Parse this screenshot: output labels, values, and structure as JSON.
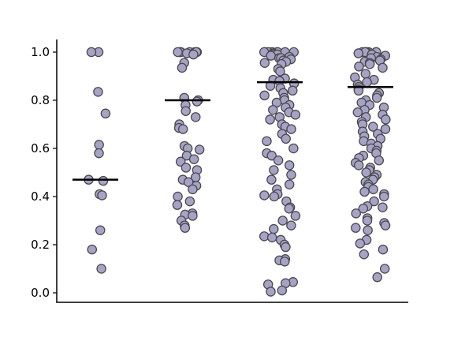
{
  "chart_data": {
    "type": "scatter",
    "title": "",
    "xlabel": "",
    "ylabel": "",
    "ylim": [
      -0.035,
      1.05
    ],
    "yticks": [
      0.0,
      0.2,
      0.4,
      0.6,
      0.8,
      1.0
    ],
    "ytick_labels": [
      "0.0",
      "0.2",
      "0.4",
      "0.6",
      "0.8",
      "1.0"
    ],
    "xticks_shown": false,
    "grid": false,
    "legend": "none",
    "colors": {
      "point_fill": "#a7a3c8",
      "point_edge": "#4a4a4a",
      "mean_line": "#000000",
      "axis": "#000000"
    },
    "groups": [
      {
        "values": [
          1.0,
          1.0,
          0.835,
          0.745,
          0.615,
          0.58,
          0.47,
          0.465,
          0.41,
          0.405,
          0.26,
          0.18,
          0.1
        ],
        "mean": 0.47
      },
      {
        "values": [
          1.0,
          1.0,
          1.0,
          1.0,
          1.0,
          1.0,
          1.0,
          1.0,
          0.995,
          0.99,
          0.955,
          0.935,
          0.81,
          0.8,
          0.795,
          0.78,
          0.755,
          0.73,
          0.7,
          0.685,
          0.68,
          0.61,
          0.6,
          0.595,
          0.57,
          0.555,
          0.545,
          0.52,
          0.51,
          0.48,
          0.47,
          0.46,
          0.445,
          0.43,
          0.4,
          0.38,
          0.365,
          0.33,
          0.325,
          0.32,
          0.3,
          0.28,
          0.27
        ],
        "mean": 0.8
      },
      {
        "values": [
          1.0,
          1.0,
          1.0,
          1.0,
          1.0,
          1.0,
          1.0,
          1.0,
          0.995,
          0.99,
          0.99,
          0.985,
          0.98,
          0.975,
          0.975,
          0.97,
          0.965,
          0.96,
          0.955,
          0.95,
          0.93,
          0.92,
          0.89,
          0.885,
          0.88,
          0.87,
          0.86,
          0.85,
          0.84,
          0.83,
          0.82,
          0.81,
          0.8,
          0.79,
          0.78,
          0.77,
          0.76,
          0.75,
          0.74,
          0.73,
          0.72,
          0.7,
          0.69,
          0.68,
          0.66,
          0.64,
          0.63,
          0.6,
          0.58,
          0.57,
          0.55,
          0.53,
          0.51,
          0.49,
          0.47,
          0.45,
          0.43,
          0.41,
          0.405,
          0.4,
          0.38,
          0.355,
          0.35,
          0.32,
          0.3,
          0.28,
          0.265,
          0.235,
          0.23,
          0.22,
          0.2,
          0.19,
          0.14,
          0.135,
          0.13,
          0.045,
          0.04,
          0.035,
          0.01,
          0.005
        ],
        "mean": 0.875
      },
      {
        "values": [
          1.0,
          1.0,
          1.0,
          1.0,
          1.0,
          1.0,
          1.0,
          1.0,
          0.995,
          0.99,
          0.985,
          0.98,
          0.975,
          0.97,
          0.965,
          0.96,
          0.955,
          0.95,
          0.94,
          0.935,
          0.91,
          0.895,
          0.885,
          0.875,
          0.865,
          0.855,
          0.845,
          0.84,
          0.83,
          0.82,
          0.81,
          0.8,
          0.79,
          0.78,
          0.77,
          0.76,
          0.75,
          0.74,
          0.73,
          0.72,
          0.71,
          0.7,
          0.69,
          0.68,
          0.67,
          0.66,
          0.65,
          0.64,
          0.63,
          0.62,
          0.61,
          0.6,
          0.59,
          0.58,
          0.57,
          0.56,
          0.55,
          0.54,
          0.53,
          0.52,
          0.51,
          0.5,
          0.49,
          0.48,
          0.47,
          0.46,
          0.45,
          0.44,
          0.43,
          0.42,
          0.41,
          0.4,
          0.38,
          0.36,
          0.355,
          0.35,
          0.33,
          0.31,
          0.3,
          0.29,
          0.28,
          0.27,
          0.26,
          0.22,
          0.205,
          0.18,
          0.16,
          0.1,
          0.065
        ],
        "mean": 0.855
      }
    ]
  }
}
